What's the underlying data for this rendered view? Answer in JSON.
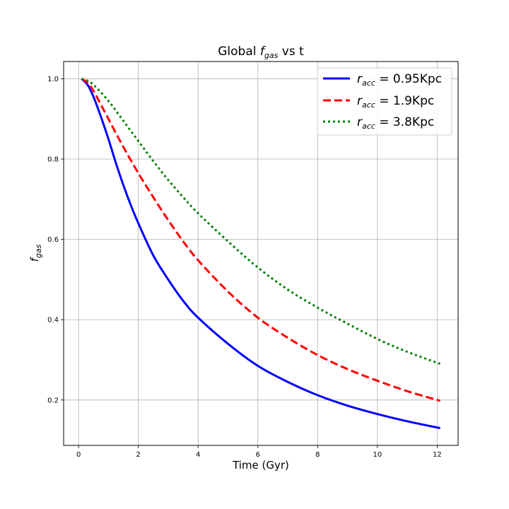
{
  "chart_data": {
    "type": "line",
    "title": {
      "prefix": "Global ",
      "italic": "f",
      "sub": "gas",
      "suffix": " vs t"
    },
    "xlabel": "Time (Gyr)",
    "ylabel": {
      "italic": "f",
      "sub": "gas"
    },
    "xlim": [
      -0.5,
      12.7
    ],
    "ylim": [
      0.087,
      1.043
    ],
    "xticks": [
      0,
      2,
      4,
      6,
      8,
      10,
      12
    ],
    "xtick_labels": [
      "0",
      "2",
      "4",
      "6",
      "8",
      "10",
      "12"
    ],
    "yticks": [
      0.2,
      0.4,
      0.6,
      0.8,
      1.0
    ],
    "ytick_labels": [
      "0.2",
      "0.4",
      "0.6",
      "0.8",
      "1.0"
    ],
    "grid": true,
    "legend_position": "top-right",
    "series": [
      {
        "name_italic": "r",
        "name_sub": "acc",
        "name_rest": " = 0.95Kpc",
        "color": "#0000ff",
        "style": "solid",
        "x": [
          0.1,
          0.3,
          0.5,
          0.75,
          1,
          1.25,
          1.5,
          1.75,
          2,
          2.5,
          3,
          3.5,
          4,
          5,
          6,
          7,
          8,
          9,
          10,
          11,
          12.1
        ],
        "y": [
          1.0,
          0.985,
          0.955,
          0.905,
          0.85,
          0.79,
          0.735,
          0.685,
          0.64,
          0.56,
          0.5,
          0.447,
          0.405,
          0.34,
          0.285,
          0.245,
          0.212,
          0.186,
          0.165,
          0.147,
          0.13
        ]
      },
      {
        "name_italic": "r",
        "name_sub": "acc",
        "name_rest": " = 1.9Kpc",
        "color": "#ff0000",
        "style": "dashed",
        "x": [
          0.1,
          0.3,
          0.5,
          0.75,
          1,
          1.5,
          2,
          2.5,
          3,
          3.5,
          4,
          5,
          6,
          7,
          8,
          9,
          10,
          11,
          12.1
        ],
        "y": [
          1.0,
          0.99,
          0.97,
          0.935,
          0.9,
          0.83,
          0.765,
          0.705,
          0.648,
          0.595,
          0.548,
          0.47,
          0.405,
          0.355,
          0.312,
          0.277,
          0.248,
          0.222,
          0.198
        ]
      },
      {
        "name_italic": "r",
        "name_sub": "acc",
        "name_rest": " = 3.8Kpc",
        "color": "#008000",
        "style": "dotted",
        "x": [
          0.1,
          0.3,
          0.5,
          1,
          1.5,
          2,
          2.5,
          3,
          3.5,
          4,
          5,
          6,
          7,
          8,
          9,
          10,
          11,
          12.1
        ],
        "y": [
          1.0,
          0.995,
          0.985,
          0.945,
          0.895,
          0.845,
          0.795,
          0.748,
          0.705,
          0.665,
          0.595,
          0.53,
          0.475,
          0.43,
          0.39,
          0.352,
          0.32,
          0.29
        ]
      }
    ]
  }
}
